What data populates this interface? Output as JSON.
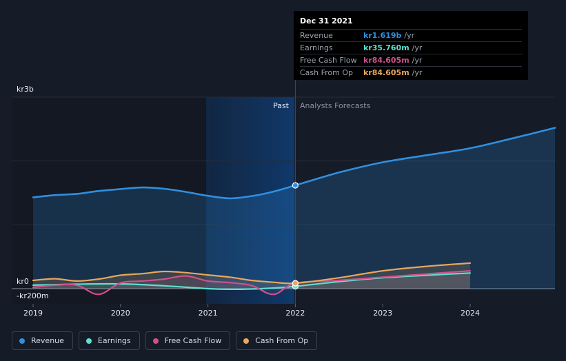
{
  "chart_data": {
    "type": "area",
    "y_axis": {
      "top_label": "kr3b",
      "zero_label": "kr0",
      "bottom_label": "-kr200m",
      "ylim": [
        -200,
        3000
      ],
      "unit": "kr millions"
    },
    "x_ticks": [
      "2019",
      "2020",
      "2021",
      "2022",
      "2023",
      "2024"
    ],
    "xlim": [
      2019.0,
      2024.97
    ],
    "region_labels": {
      "past": "Past",
      "forecast": "Analysts Forecasts"
    },
    "highlight_x": 2021.0,
    "divider_x": 2022.0,
    "series": [
      {
        "name": "Revenue",
        "color": "#2f8fe0",
        "x": [
          2019.0,
          2019.25,
          2019.5,
          2019.75,
          2020.0,
          2020.25,
          2020.5,
          2020.75,
          2021.0,
          2021.25,
          2021.5,
          2021.75,
          2022.0,
          2022.5,
          2023.0,
          2023.5,
          2024.0,
          2024.5,
          2024.97
        ],
        "values": [
          1430,
          1465,
          1485,
          1530,
          1560,
          1585,
          1565,
          1515,
          1455,
          1415,
          1450,
          1520,
          1619,
          1820,
          1980,
          2090,
          2200,
          2360,
          2520
        ]
      },
      {
        "name": "Earnings",
        "color": "#5ce0cf",
        "x": [
          2019.0,
          2019.5,
          2020.0,
          2020.5,
          2021.0,
          2021.25,
          2021.5,
          2021.75,
          2022.0,
          2022.5,
          2023.0,
          2023.5,
          2024.0
        ],
        "values": [
          55,
          70,
          75,
          45,
          0,
          -10,
          -5,
          10,
          36,
          110,
          170,
          210,
          245
        ]
      },
      {
        "name": "Free Cash Flow",
        "color": "#d0508f",
        "x": [
          2019.0,
          2019.25,
          2019.5,
          2019.75,
          2020.0,
          2020.25,
          2020.5,
          2020.75,
          2021.0,
          2021.25,
          2021.5,
          2021.75,
          2022.0,
          2022.5,
          2023.0,
          2023.5,
          2024.0
        ],
        "values": [
          20,
          55,
          55,
          -90,
          90,
          120,
          150,
          200,
          120,
          95,
          50,
          -90,
          85,
          130,
          180,
          230,
          280
        ]
      },
      {
        "name": "Cash From Op",
        "color": "#e8a75c",
        "x": [
          2019.0,
          2019.25,
          2019.5,
          2019.75,
          2020.0,
          2020.25,
          2020.5,
          2020.75,
          2021.0,
          2021.25,
          2021.5,
          2021.75,
          2022.0,
          2022.5,
          2023.0,
          2023.5,
          2024.0
        ],
        "values": [
          130,
          155,
          120,
          150,
          210,
          235,
          270,
          250,
          215,
          180,
          130,
          100,
          85,
          170,
          280,
          350,
          400
        ]
      }
    ]
  },
  "tooltip": {
    "date": "Dec 31 2021",
    "rows": [
      {
        "label": "Revenue",
        "value": "kr1.619b",
        "unit": "/yr",
        "color": "#2f8fe0"
      },
      {
        "label": "Earnings",
        "value": "kr35.760m",
        "unit": "/yr",
        "color": "#5ce0cf"
      },
      {
        "label": "Free Cash Flow",
        "value": "kr84.605m",
        "unit": "/yr",
        "color": "#d0508f"
      },
      {
        "label": "Cash From Op",
        "value": "kr84.605m",
        "unit": "/yr",
        "color": "#e8a75c"
      }
    ]
  },
  "legend": [
    {
      "label": "Revenue",
      "color": "#2f8fe0"
    },
    {
      "label": "Earnings",
      "color": "#5ce0cf"
    },
    {
      "label": "Free Cash Flow",
      "color": "#d0508f"
    },
    {
      "label": "Cash From Op",
      "color": "#e8a75c"
    }
  ]
}
